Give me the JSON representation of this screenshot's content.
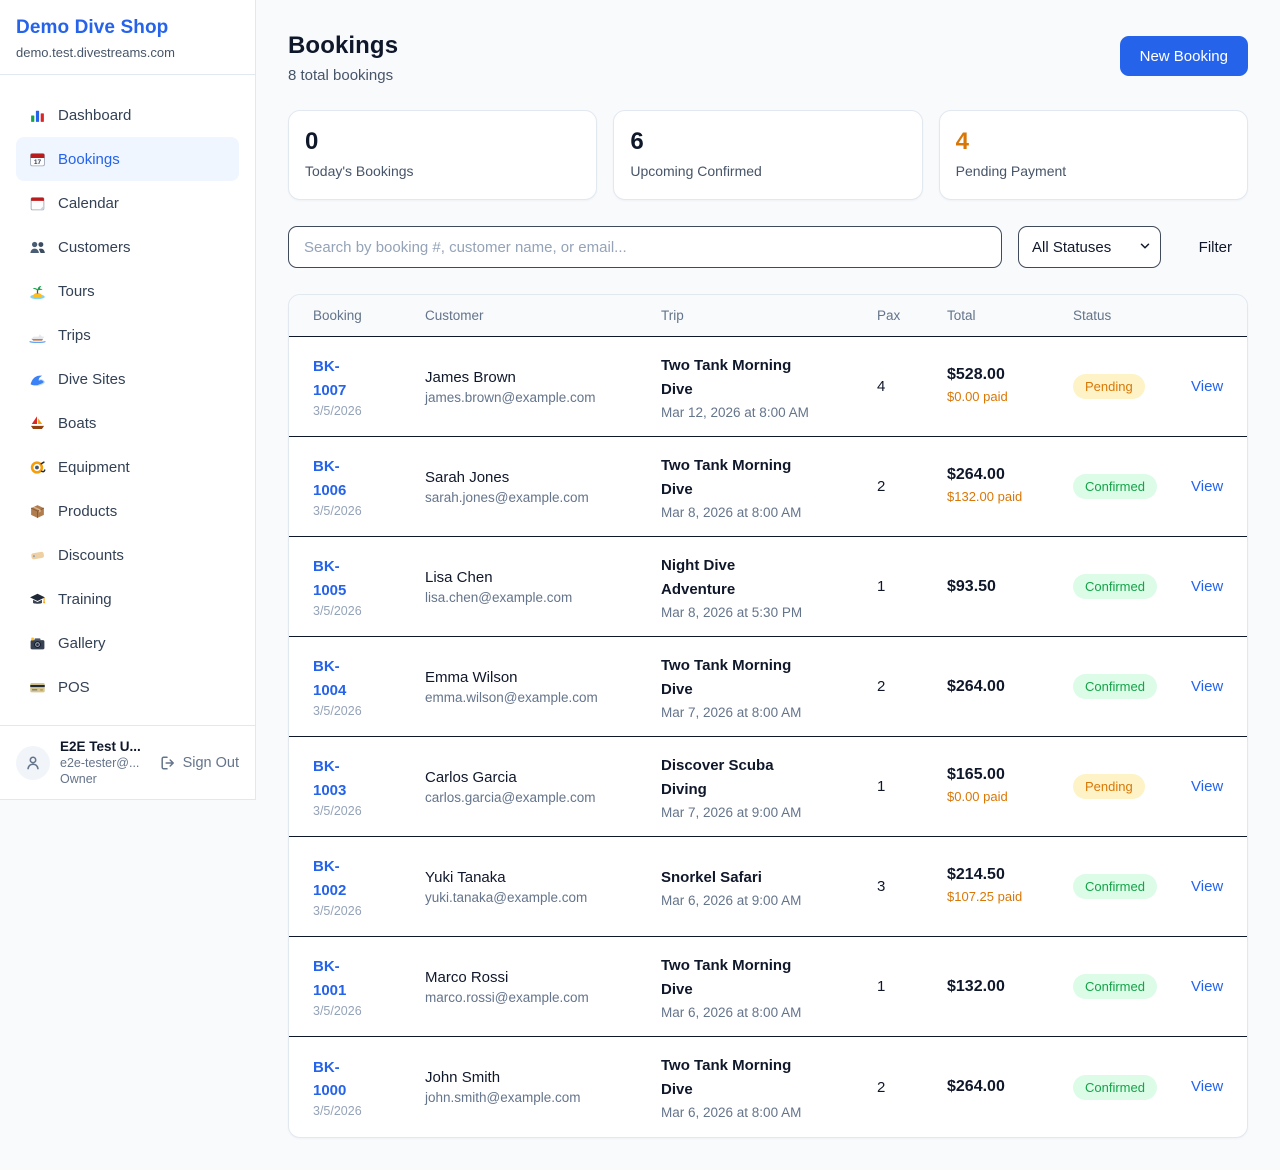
{
  "sidebar": {
    "brand": {
      "name": "Demo Dive Shop",
      "domain": "demo.test.divestreams.com"
    },
    "nav": [
      {
        "label": "Dashboard",
        "icon": "dashboard-chart",
        "active": false
      },
      {
        "label": "Bookings",
        "icon": "bookings-calendar",
        "active": true
      },
      {
        "label": "Calendar",
        "icon": "calendar-page",
        "active": false
      },
      {
        "label": "Customers",
        "icon": "people",
        "active": false
      },
      {
        "label": "Tours",
        "icon": "island",
        "active": false
      },
      {
        "label": "Trips",
        "icon": "speedboat",
        "active": false
      },
      {
        "label": "Dive Sites",
        "icon": "wave",
        "active": false
      },
      {
        "label": "Boats",
        "icon": "sailboat",
        "active": false
      },
      {
        "label": "Equipment",
        "icon": "dive-mask",
        "active": false
      },
      {
        "label": "Products",
        "icon": "package",
        "active": false
      },
      {
        "label": "Discounts",
        "icon": "tag",
        "active": false
      },
      {
        "label": "Training",
        "icon": "grad-cap",
        "active": false
      },
      {
        "label": "Gallery",
        "icon": "camera",
        "active": false
      },
      {
        "label": "POS",
        "icon": "credit-card",
        "active": false
      }
    ],
    "user": {
      "name": "E2E Test U...",
      "email": "e2e-tester@...",
      "role": "Owner",
      "sign_out_label": "Sign Out"
    }
  },
  "header": {
    "title": "Bookings",
    "subtitle": "8 total bookings",
    "new_booking_label": "New Booking"
  },
  "stats": [
    {
      "value": "0",
      "label": "Today's Bookings",
      "color": "#0f172a"
    },
    {
      "value": "6",
      "label": "Upcoming Confirmed",
      "color": "#0f172a"
    },
    {
      "value": "4",
      "label": "Pending Payment",
      "color": "#d97706"
    }
  ],
  "filters": {
    "search_placeholder": "Search by booking #, customer name, or email...",
    "status_selected": "All Statuses",
    "filter_label": "Filter"
  },
  "table": {
    "columns": [
      "Booking",
      "Customer",
      "Trip",
      "Pax",
      "Total",
      "Status"
    ],
    "view_label": "View",
    "rows": [
      {
        "id": "BK-1007",
        "date": "3/5/2026",
        "customer": "James Brown",
        "email": "james.brown@example.com",
        "trip": "Two Tank Morning Dive",
        "trip_date": "Mar 12, 2026 at 8:00 AM",
        "pax": "4",
        "total": "$528.00",
        "paid": "$0.00 paid",
        "status": "Pending"
      },
      {
        "id": "BK-1006",
        "date": "3/5/2026",
        "customer": "Sarah Jones",
        "email": "sarah.jones@example.com",
        "trip": "Two Tank Morning Dive",
        "trip_date": "Mar 8, 2026 at 8:00 AM",
        "pax": "2",
        "total": "$264.00",
        "paid": "$132.00 paid",
        "status": "Confirmed"
      },
      {
        "id": "BK-1005",
        "date": "3/5/2026",
        "customer": "Lisa Chen",
        "email": "lisa.chen@example.com",
        "trip": "Night Dive Adventure",
        "trip_date": "Mar 8, 2026 at 5:30 PM",
        "pax": "1",
        "total": "$93.50",
        "paid": null,
        "status": "Confirmed"
      },
      {
        "id": "BK-1004",
        "date": "3/5/2026",
        "customer": "Emma Wilson",
        "email": "emma.wilson@example.com",
        "trip": "Two Tank Morning Dive",
        "trip_date": "Mar 7, 2026 at 8:00 AM",
        "pax": "2",
        "total": "$264.00",
        "paid": null,
        "status": "Confirmed"
      },
      {
        "id": "BK-1003",
        "date": "3/5/2026",
        "customer": "Carlos Garcia",
        "email": "carlos.garcia@example.com",
        "trip": "Discover Scuba Diving",
        "trip_date": "Mar 7, 2026 at 9:00 AM",
        "pax": "1",
        "total": "$165.00",
        "paid": "$0.00 paid",
        "status": "Pending"
      },
      {
        "id": "BK-1002",
        "date": "3/5/2026",
        "customer": "Yuki Tanaka",
        "email": "yuki.tanaka@example.com",
        "trip": "Snorkel Safari",
        "trip_date": "Mar 6, 2026 at 9:00 AM",
        "pax": "3",
        "total": "$214.50",
        "paid": "$107.25 paid",
        "status": "Confirmed"
      },
      {
        "id": "BK-1001",
        "date": "3/5/2026",
        "customer": "Marco Rossi",
        "email": "marco.rossi@example.com",
        "trip": "Two Tank Morning Dive",
        "trip_date": "Mar 6, 2026 at 8:00 AM",
        "pax": "1",
        "total": "$132.00",
        "paid": null,
        "status": "Confirmed"
      },
      {
        "id": "BK-1000",
        "date": "3/5/2026",
        "customer": "John Smith",
        "email": "john.smith@example.com",
        "trip": "Two Tank Morning Dive",
        "trip_date": "Mar 6, 2026 at 8:00 AM",
        "pax": "2",
        "total": "$264.00",
        "paid": null,
        "status": "Confirmed"
      }
    ]
  },
  "colors": {
    "accent": "#2563eb",
    "pending_text": "#d97706",
    "pending_bg": "#fef3c7",
    "confirmed_text": "#16a34a",
    "confirmed_bg": "#dcfce7",
    "row_divider": "#0f172a"
  }
}
